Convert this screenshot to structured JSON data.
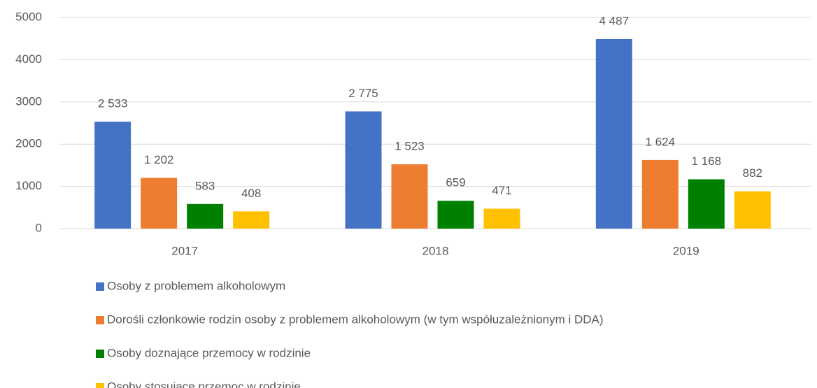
{
  "chart_data": {
    "type": "bar",
    "categories": [
      "2017",
      "2018",
      "2019"
    ],
    "series": [
      {
        "name": "Osoby z problemem alkoholowym",
        "color": "#4472c4",
        "values": [
          2533,
          2775,
          4487
        ],
        "value_labels": [
          "2 533",
          "2 775",
          "4 487"
        ]
      },
      {
        "name": "Dorośli członkowie rodzin osoby z problemem alkoholowym (w tym współuzależnionym i DDA)",
        "color": "#ed7d31",
        "values": [
          1202,
          1523,
          1624
        ],
        "value_labels": [
          "1 202",
          "1 523",
          "1 624"
        ]
      },
      {
        "name": "Osoby doznające przemocy w rodzinie",
        "color": "#008000",
        "values": [
          583,
          659,
          1168
        ],
        "value_labels": [
          "583",
          "659",
          "1 168"
        ]
      },
      {
        "name": "Osoby stosujące przemoc w rodzinie",
        "color": "#ffc000",
        "values": [
          408,
          471,
          882
        ],
        "value_labels": [
          "408",
          "471",
          "882"
        ]
      }
    ],
    "ylim": [
      0,
      5000
    ],
    "yticks": [
      0,
      1000,
      2000,
      3000,
      4000,
      5000
    ],
    "grid": true,
    "legend": "bottom"
  }
}
